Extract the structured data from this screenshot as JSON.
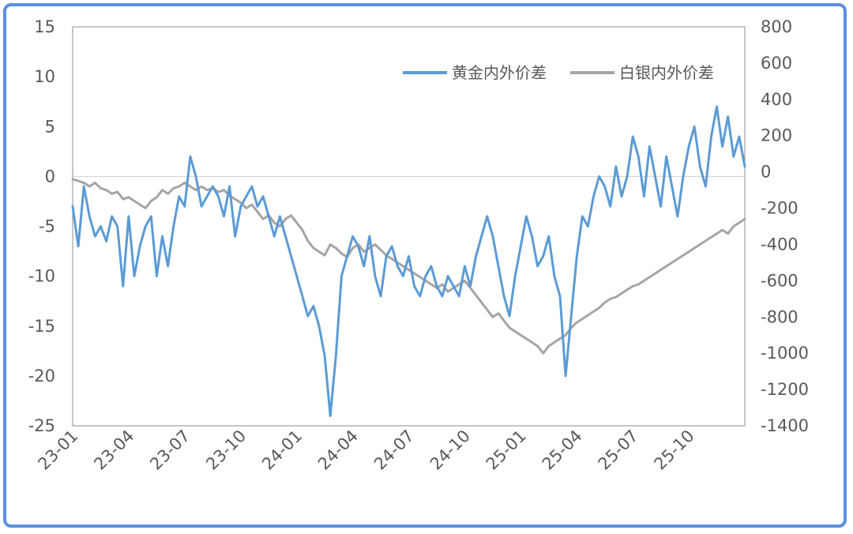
{
  "chart_data": {
    "type": "line",
    "x_labels": [
      "23-01",
      "23-04",
      "23-07",
      "23-10",
      "24-01",
      "24-04",
      "24-07",
      "24-10",
      "25-01",
      "25-04",
      "25-07",
      "25-10"
    ],
    "x_range": [
      0,
      36
    ],
    "y_left": {
      "lim": [
        -25,
        15
      ],
      "ticks": [
        15,
        10,
        5,
        0,
        -5,
        -10,
        -15,
        -20,
        -25
      ]
    },
    "y_right": {
      "lim": [
        -1400,
        800
      ],
      "ticks": [
        800,
        600,
        400,
        200,
        0,
        -200,
        -400,
        -600,
        -800,
        -1000,
        -1200,
        -1400
      ]
    },
    "zero_line": true,
    "legend_position": "top-right",
    "series": [
      {
        "name": "黄金内外价差",
        "axis": "left",
        "color": "#5b9bd5",
        "points": [
          [
            0,
            -3
          ],
          [
            0.3,
            -7
          ],
          [
            0.6,
            -1
          ],
          [
            0.9,
            -4
          ],
          [
            1.2,
            -6
          ],
          [
            1.5,
            -5
          ],
          [
            1.8,
            -6.5
          ],
          [
            2.1,
            -4
          ],
          [
            2.4,
            -5
          ],
          [
            2.7,
            -11
          ],
          [
            3,
            -4
          ],
          [
            3.3,
            -10
          ],
          [
            3.6,
            -7
          ],
          [
            3.9,
            -5
          ],
          [
            4.2,
            -4
          ],
          [
            4.5,
            -10
          ],
          [
            4.8,
            -6
          ],
          [
            5.1,
            -9
          ],
          [
            5.4,
            -5
          ],
          [
            5.7,
            -2
          ],
          [
            6,
            -3
          ],
          [
            6.3,
            2
          ],
          [
            6.6,
            0
          ],
          [
            6.9,
            -3
          ],
          [
            7.2,
            -2
          ],
          [
            7.5,
            -1
          ],
          [
            7.8,
            -2
          ],
          [
            8.1,
            -4
          ],
          [
            8.4,
            -1
          ],
          [
            8.7,
            -6
          ],
          [
            9,
            -3
          ],
          [
            9.3,
            -2
          ],
          [
            9.6,
            -1
          ],
          [
            9.9,
            -3
          ],
          [
            10.2,
            -2
          ],
          [
            10.5,
            -4
          ],
          [
            10.8,
            -6
          ],
          [
            11.1,
            -4
          ],
          [
            11.4,
            -6
          ],
          [
            11.7,
            -8
          ],
          [
            12,
            -10
          ],
          [
            12.3,
            -12
          ],
          [
            12.6,
            -14
          ],
          [
            12.9,
            -13
          ],
          [
            13.2,
            -15
          ],
          [
            13.5,
            -18
          ],
          [
            13.8,
            -24
          ],
          [
            14.1,
            -18
          ],
          [
            14.4,
            -10
          ],
          [
            14.7,
            -8
          ],
          [
            15,
            -6
          ],
          [
            15.3,
            -7
          ],
          [
            15.6,
            -9
          ],
          [
            15.9,
            -6
          ],
          [
            16.2,
            -10
          ],
          [
            16.5,
            -12
          ],
          [
            16.8,
            -8
          ],
          [
            17.1,
            -7
          ],
          [
            17.4,
            -9
          ],
          [
            17.7,
            -10
          ],
          [
            18,
            -8
          ],
          [
            18.3,
            -11
          ],
          [
            18.6,
            -12
          ],
          [
            18.9,
            -10
          ],
          [
            19.2,
            -9
          ],
          [
            19.5,
            -11
          ],
          [
            19.8,
            -12
          ],
          [
            20.1,
            -10
          ],
          [
            20.4,
            -11
          ],
          [
            20.7,
            -12
          ],
          [
            21,
            -9
          ],
          [
            21.3,
            -11
          ],
          [
            21.6,
            -8
          ],
          [
            21.9,
            -6
          ],
          [
            22.2,
            -4
          ],
          [
            22.5,
            -6
          ],
          [
            22.8,
            -9
          ],
          [
            23.1,
            -12
          ],
          [
            23.4,
            -14
          ],
          [
            23.7,
            -10
          ],
          [
            24,
            -7
          ],
          [
            24.3,
            -4
          ],
          [
            24.6,
            -6
          ],
          [
            24.9,
            -9
          ],
          [
            25.2,
            -8
          ],
          [
            25.5,
            -6
          ],
          [
            25.8,
            -10
          ],
          [
            26.1,
            -12
          ],
          [
            26.4,
            -20
          ],
          [
            26.7,
            -14
          ],
          [
            27,
            -8
          ],
          [
            27.3,
            -4
          ],
          [
            27.6,
            -5
          ],
          [
            27.9,
            -2
          ],
          [
            28.2,
            0
          ],
          [
            28.5,
            -1
          ],
          [
            28.8,
            -3
          ],
          [
            29.1,
            1
          ],
          [
            29.4,
            -2
          ],
          [
            29.7,
            0
          ],
          [
            30,
            4
          ],
          [
            30.3,
            2
          ],
          [
            30.6,
            -2
          ],
          [
            30.9,
            3
          ],
          [
            31.2,
            0
          ],
          [
            31.5,
            -3
          ],
          [
            31.8,
            2
          ],
          [
            32.1,
            -1
          ],
          [
            32.4,
            -4
          ],
          [
            32.7,
            0
          ],
          [
            33,
            3
          ],
          [
            33.3,
            5
          ],
          [
            33.6,
            1
          ],
          [
            33.9,
            -1
          ],
          [
            34.2,
            4
          ],
          [
            34.5,
            7
          ],
          [
            34.8,
            3
          ],
          [
            35.1,
            6
          ],
          [
            35.4,
            2
          ],
          [
            35.7,
            4
          ],
          [
            36,
            1
          ]
        ]
      },
      {
        "name": "白银内外价差",
        "axis": "right",
        "color": "#a5a5a5",
        "points": [
          [
            0,
            -40
          ],
          [
            0.3,
            -50
          ],
          [
            0.6,
            -60
          ],
          [
            0.9,
            -80
          ],
          [
            1.2,
            -60
          ],
          [
            1.5,
            -90
          ],
          [
            1.8,
            -100
          ],
          [
            2.1,
            -120
          ],
          [
            2.4,
            -110
          ],
          [
            2.7,
            -150
          ],
          [
            3,
            -140
          ],
          [
            3.3,
            -160
          ],
          [
            3.6,
            -180
          ],
          [
            3.9,
            -200
          ],
          [
            4.2,
            -160
          ],
          [
            4.5,
            -140
          ],
          [
            4.8,
            -100
          ],
          [
            5.1,
            -120
          ],
          [
            5.4,
            -90
          ],
          [
            5.7,
            -80
          ],
          [
            6,
            -60
          ],
          [
            6.3,
            -80
          ],
          [
            6.6,
            -100
          ],
          [
            6.9,
            -80
          ],
          [
            7.2,
            -100
          ],
          [
            7.5,
            -90
          ],
          [
            7.8,
            -110
          ],
          [
            8.1,
            -100
          ],
          [
            8.4,
            -130
          ],
          [
            8.7,
            -150
          ],
          [
            9,
            -170
          ],
          [
            9.3,
            -200
          ],
          [
            9.6,
            -180
          ],
          [
            9.9,
            -220
          ],
          [
            10.2,
            -260
          ],
          [
            10.5,
            -240
          ],
          [
            10.8,
            -280
          ],
          [
            11.1,
            -300
          ],
          [
            11.4,
            -260
          ],
          [
            11.7,
            -240
          ],
          [
            12,
            -280
          ],
          [
            12.3,
            -320
          ],
          [
            12.6,
            -380
          ],
          [
            12.9,
            -420
          ],
          [
            13.2,
            -440
          ],
          [
            13.5,
            -460
          ],
          [
            13.8,
            -400
          ],
          [
            14.1,
            -420
          ],
          [
            14.4,
            -450
          ],
          [
            14.7,
            -470
          ],
          [
            15,
            -420
          ],
          [
            15.3,
            -400
          ],
          [
            15.6,
            -440
          ],
          [
            15.9,
            -420
          ],
          [
            16.2,
            -400
          ],
          [
            16.5,
            -430
          ],
          [
            16.8,
            -460
          ],
          [
            17.1,
            -480
          ],
          [
            17.4,
            -500
          ],
          [
            17.7,
            -520
          ],
          [
            18,
            -540
          ],
          [
            18.3,
            -560
          ],
          [
            18.6,
            -580
          ],
          [
            18.9,
            -600
          ],
          [
            19.2,
            -620
          ],
          [
            19.5,
            -640
          ],
          [
            19.8,
            -620
          ],
          [
            20.1,
            -660
          ],
          [
            20.4,
            -640
          ],
          [
            20.7,
            -620
          ],
          [
            21,
            -600
          ],
          [
            21.3,
            -640
          ],
          [
            21.6,
            -680
          ],
          [
            21.9,
            -720
          ],
          [
            22.2,
            -760
          ],
          [
            22.5,
            -800
          ],
          [
            22.8,
            -780
          ],
          [
            23.1,
            -820
          ],
          [
            23.4,
            -860
          ],
          [
            23.7,
            -880
          ],
          [
            24,
            -900
          ],
          [
            24.3,
            -920
          ],
          [
            24.6,
            -940
          ],
          [
            24.9,
            -960
          ],
          [
            25.2,
            -1000
          ],
          [
            25.5,
            -960
          ],
          [
            25.8,
            -940
          ],
          [
            26.1,
            -920
          ],
          [
            26.4,
            -900
          ],
          [
            26.7,
            -860
          ],
          [
            27,
            -830
          ],
          [
            27.3,
            -810
          ],
          [
            27.6,
            -790
          ],
          [
            27.9,
            -770
          ],
          [
            28.2,
            -750
          ],
          [
            28.5,
            -720
          ],
          [
            28.8,
            -700
          ],
          [
            29.1,
            -690
          ],
          [
            29.4,
            -670
          ],
          [
            29.7,
            -650
          ],
          [
            30,
            -630
          ],
          [
            30.3,
            -620
          ],
          [
            30.6,
            -600
          ],
          [
            30.9,
            -580
          ],
          [
            31.2,
            -560
          ],
          [
            31.5,
            -540
          ],
          [
            31.8,
            -520
          ],
          [
            32.1,
            -500
          ],
          [
            32.4,
            -480
          ],
          [
            32.7,
            -460
          ],
          [
            33,
            -440
          ],
          [
            33.3,
            -420
          ],
          [
            33.6,
            -400
          ],
          [
            33.9,
            -380
          ],
          [
            34.2,
            -360
          ],
          [
            34.5,
            -340
          ],
          [
            34.8,
            -320
          ],
          [
            35.1,
            -340
          ],
          [
            35.4,
            -300
          ],
          [
            35.7,
            -280
          ],
          [
            36,
            -260
          ]
        ]
      }
    ]
  }
}
